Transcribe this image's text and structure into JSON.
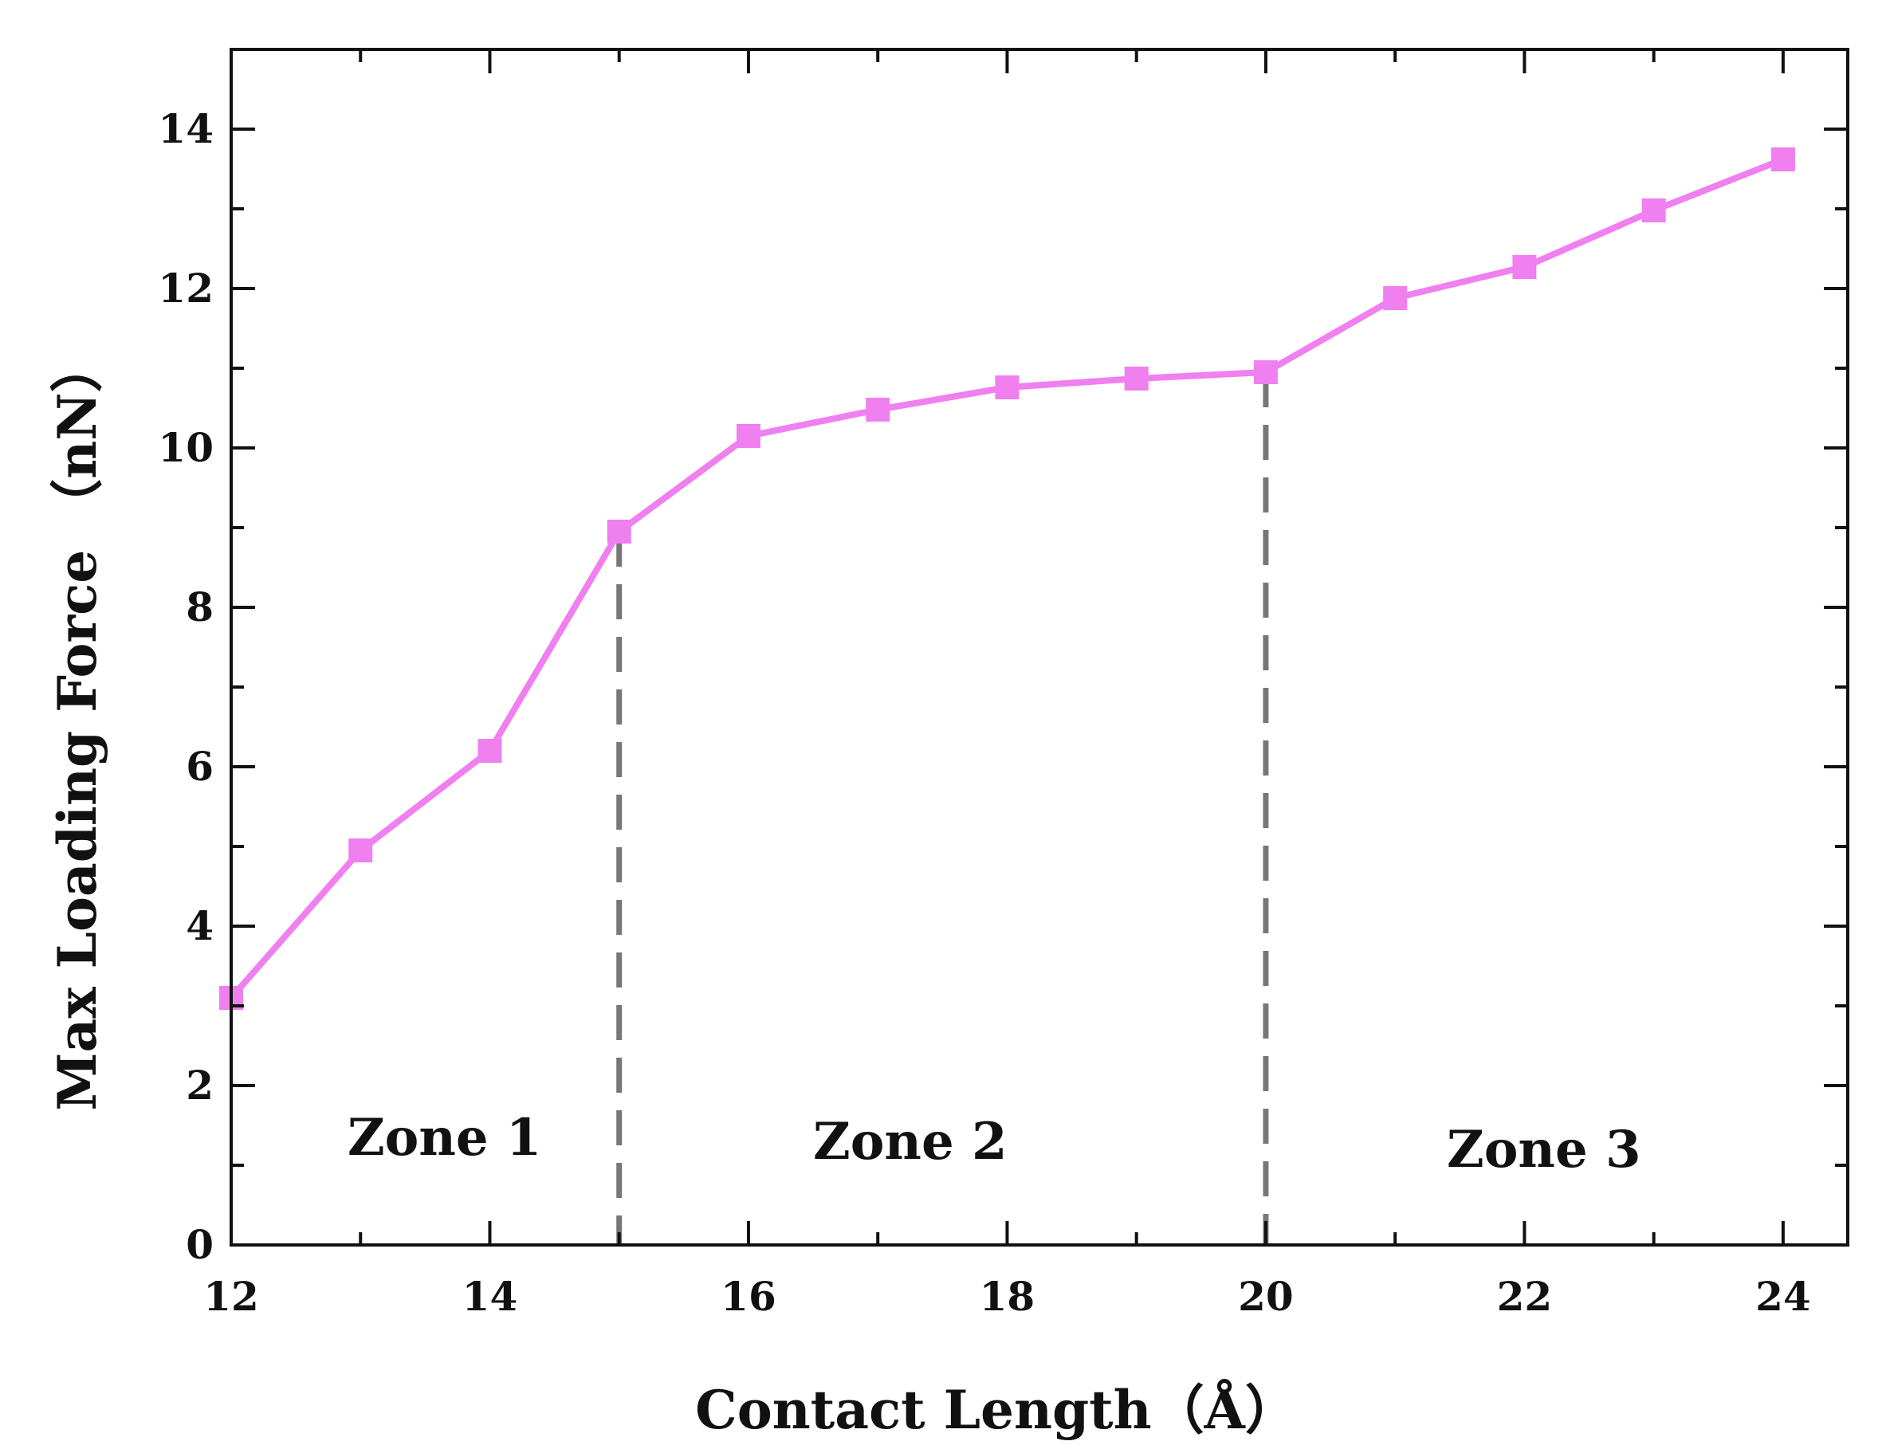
{
  "chart_data": {
    "type": "line",
    "title": "",
    "xlabel": "Contact Length（Å）",
    "ylabel": "Max Loading Force （nN）",
    "xlim": [
      12,
      24.5
    ],
    "ylim": [
      0,
      15
    ],
    "x_ticks": [
      12,
      14,
      16,
      18,
      20,
      22,
      24
    ],
    "x_tick_labels": [
      "12",
      "14",
      "16",
      "18",
      "20",
      "22",
      "24"
    ],
    "y_ticks": [
      0,
      2,
      4,
      6,
      8,
      10,
      12,
      14
    ],
    "y_tick_labels": [
      "0",
      "2",
      "4",
      "6",
      "8",
      "10",
      "12",
      "14"
    ],
    "grid": false,
    "legend": "none",
    "series": [
      {
        "color": "#f07ff0",
        "marker": "square",
        "x": [
          12,
          13,
          14,
          15,
          16,
          17,
          18,
          19,
          20,
          21,
          22,
          23,
          24
        ],
        "y": [
          3.1,
          4.95,
          6.2,
          8.95,
          10.15,
          10.48,
          10.76,
          10.87,
          10.95,
          11.88,
          12.27,
          12.98,
          13.62
        ]
      }
    ],
    "dividers": [
      {
        "x": 15,
        "color": "#777777",
        "style": "dashed"
      },
      {
        "x": 20,
        "color": "#777777",
        "style": "dashed"
      }
    ],
    "annotations": [
      {
        "text": "Zone 1",
        "x": 13.65,
        "y": 1.35
      },
      {
        "text": "Zone 2",
        "x": 17.25,
        "y": 1.3
      },
      {
        "text": "Zone 3",
        "x": 22.15,
        "y": 1.2
      }
    ]
  }
}
